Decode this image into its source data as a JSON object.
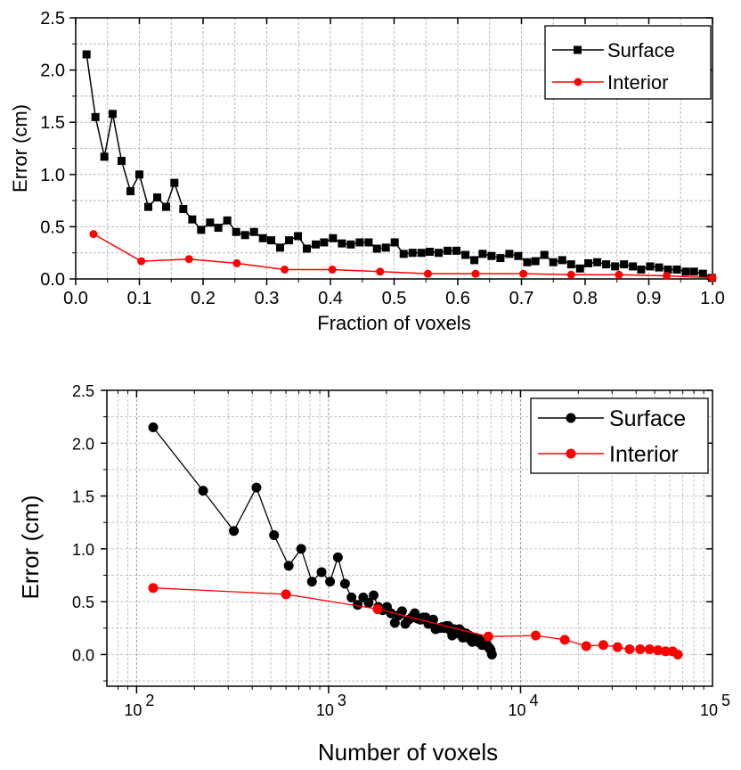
{
  "chart_data": [
    {
      "type": "line",
      "xlabel": "Fraction of voxels",
      "ylabel": "Error (cm)",
      "xlim": [
        0.0,
        1.0
      ],
      "ylim": [
        0.0,
        2.5
      ],
      "xscale": "linear",
      "yscale": "linear",
      "grid": true,
      "legend_position": "top-right",
      "x_ticks": [
        "0.0",
        "0.1",
        "0.2",
        "0.3",
        "0.4",
        "0.5",
        "0.6",
        "0.7",
        "0.8",
        "0.9",
        "1.0"
      ],
      "y_ticks": [
        "0.0",
        "0.5",
        "1.0",
        "1.5",
        "2.0",
        "2.5"
      ],
      "series": [
        {
          "name": "Surface",
          "color": "#000000",
          "marker": "square",
          "x": [
            0.017,
            0.031,
            0.045,
            0.058,
            0.072,
            0.086,
            0.1,
            0.114,
            0.128,
            0.142,
            0.155,
            0.169,
            0.183,
            0.197,
            0.211,
            0.224,
            0.238,
            0.252,
            0.266,
            0.28,
            0.294,
            0.307,
            0.321,
            0.335,
            0.349,
            0.363,
            0.377,
            0.39,
            0.404,
            0.418,
            0.432,
            0.446,
            0.46,
            0.473,
            0.487,
            0.501,
            0.515,
            0.529,
            0.543,
            0.556,
            0.57,
            0.584,
            0.598,
            0.612,
            0.626,
            0.639,
            0.653,
            0.667,
            0.681,
            0.695,
            0.709,
            0.722,
            0.736,
            0.75,
            0.764,
            0.778,
            0.792,
            0.805,
            0.819,
            0.833,
            0.847,
            0.861,
            0.875,
            0.888,
            0.902,
            0.916,
            0.93,
            0.944,
            0.958,
            0.971,
            0.985,
            0.999
          ],
          "y": [
            2.15,
            1.55,
            1.17,
            1.58,
            1.13,
            0.84,
            1.0,
            0.69,
            0.78,
            0.69,
            0.92,
            0.67,
            0.57,
            0.47,
            0.54,
            0.49,
            0.56,
            0.45,
            0.42,
            0.45,
            0.39,
            0.37,
            0.3,
            0.37,
            0.41,
            0.29,
            0.33,
            0.35,
            0.39,
            0.34,
            0.33,
            0.35,
            0.35,
            0.29,
            0.3,
            0.35,
            0.24,
            0.25,
            0.25,
            0.26,
            0.25,
            0.27,
            0.27,
            0.23,
            0.18,
            0.24,
            0.22,
            0.2,
            0.24,
            0.22,
            0.16,
            0.17,
            0.23,
            0.16,
            0.18,
            0.14,
            0.1,
            0.15,
            0.16,
            0.14,
            0.12,
            0.14,
            0.12,
            0.09,
            0.12,
            0.11,
            0.09,
            0.09,
            0.07,
            0.07,
            0.05,
            0.01
          ]
        },
        {
          "name": "Interior",
          "color": "#ff0000",
          "marker": "circle",
          "x": [
            0.028,
            0.103,
            0.178,
            0.253,
            0.328,
            0.403,
            0.478,
            0.553,
            0.628,
            0.703,
            0.778,
            0.853,
            0.928,
            1.0
          ],
          "y": [
            0.43,
            0.17,
            0.19,
            0.15,
            0.09,
            0.09,
            0.07,
            0.05,
            0.05,
            0.05,
            0.04,
            0.04,
            0.03,
            0.01
          ]
        }
      ]
    },
    {
      "type": "line",
      "xlabel": "Number of voxels",
      "ylabel": "Error (cm)",
      "xlim": [
        70,
        100000
      ],
      "ylim": [
        -0.3,
        2.5
      ],
      "xscale": "log",
      "yscale": "linear",
      "grid": true,
      "legend_position": "top-right",
      "x_tick_bases": [
        "10",
        "10",
        "10",
        "10"
      ],
      "x_tick_exponents": [
        "2",
        "3",
        "4",
        "5"
      ],
      "y_ticks": [
        "0.0",
        "0.5",
        "1.0",
        "1.5",
        "2.0",
        "2.5"
      ],
      "series": [
        {
          "name": "Surface",
          "color": "#000000",
          "marker": "circle",
          "x": [
            122,
            222,
            321,
            421,
            520,
            620,
            720,
            819,
            919,
            1018,
            1118,
            1218,
            1317,
            1417,
            1516,
            1616,
            1716,
            1815,
            1915,
            2014,
            2114,
            2214,
            2313,
            2413,
            2512,
            2612,
            2711,
            2811,
            2911,
            3010,
            3110,
            3209,
            3309,
            3409,
            3508,
            3608,
            3707,
            3807,
            3907,
            4006,
            4106,
            4205,
            4305,
            4405,
            4504,
            4604,
            4703,
            4803,
            4903,
            5002,
            5102,
            5201,
            5301,
            5401,
            5500,
            5600,
            5699,
            5799,
            5899,
            5998,
            6098,
            6197,
            6297,
            6397,
            6496,
            6596,
            6695,
            6795,
            6895,
            6994,
            7094
          ],
          "y": [
            2.15,
            1.55,
            1.17,
            1.58,
            1.13,
            0.84,
            1.0,
            0.69,
            0.78,
            0.69,
            0.92,
            0.67,
            0.54,
            0.47,
            0.54,
            0.49,
            0.56,
            0.45,
            0.42,
            0.45,
            0.39,
            0.3,
            0.37,
            0.41,
            0.29,
            0.33,
            0.35,
            0.39,
            0.34,
            0.33,
            0.35,
            0.35,
            0.29,
            0.3,
            0.33,
            0.24,
            0.25,
            0.25,
            0.26,
            0.25,
            0.27,
            0.27,
            0.23,
            0.18,
            0.24,
            0.22,
            0.2,
            0.24,
            0.22,
            0.16,
            0.17,
            0.2,
            0.16,
            0.18,
            0.14,
            0.12,
            0.15,
            0.16,
            0.14,
            0.12,
            0.14,
            0.12,
            0.09,
            0.12,
            0.11,
            0.09,
            0.09,
            0.07,
            0.06,
            0.04,
            0.0
          ]
        },
        {
          "name": "Interior",
          "color": "#ff0000",
          "marker": "circle",
          "x": [
            122,
            600,
            1800,
            6800,
            12000,
            17000,
            22000,
            27000,
            32000,
            37000,
            42000,
            47000,
            52000,
            57000,
            62000,
            66000
          ],
          "y": [
            0.63,
            0.57,
            0.43,
            0.17,
            0.18,
            0.14,
            0.08,
            0.09,
            0.07,
            0.05,
            0.05,
            0.05,
            0.04,
            0.03,
            0.03,
            0.0
          ]
        }
      ]
    }
  ]
}
